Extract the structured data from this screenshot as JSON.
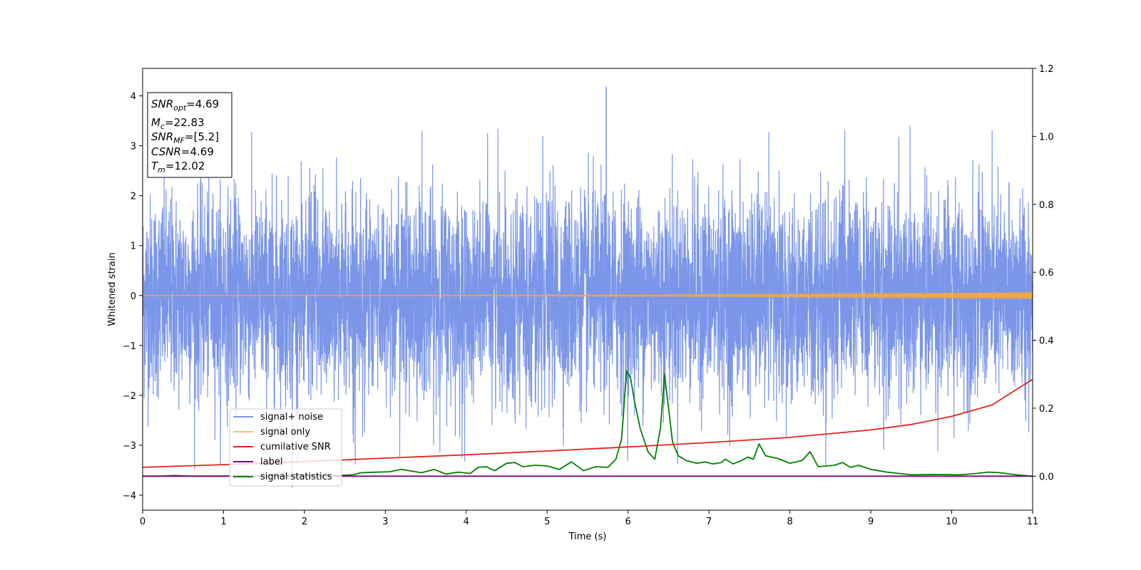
{
  "chart_data": {
    "type": "line",
    "xlabel": "Time (s)",
    "ylabel": "Whitened strain",
    "xlim": [
      0,
      11
    ],
    "ylim_left": [
      -4.3,
      4.55
    ],
    "ylim_right": [
      -0.1,
      1.2
    ],
    "x_ticks": [
      "0",
      "1",
      "2",
      "3",
      "4",
      "5",
      "6",
      "7",
      "8",
      "9",
      "10",
      "11"
    ],
    "y_ticks_left": [
      "−4",
      "−3",
      "−2",
      "−1",
      "0",
      "1",
      "2",
      "3",
      "4"
    ],
    "y_ticks_right": [
      "0.0",
      "0.2",
      "0.4",
      "0.6",
      "0.8",
      "1.0",
      "1.2"
    ],
    "grid": false,
    "legend_position": "lower-left",
    "info_box": {
      "lines": [
        {
          "sym": "SNR",
          "sub": "opt",
          "value": "=4.69"
        },
        {
          "sym": "M",
          "sub": "c",
          "value": "=22.83"
        },
        {
          "sym": "SNR",
          "sub": "MF",
          "value": "=[5.2]"
        },
        {
          "sym": "CSNR",
          "sub": "",
          "value": "=4.69"
        },
        {
          "sym": "T",
          "sub": "m",
          "value": "=12.02"
        }
      ]
    },
    "series": [
      {
        "name": "signal+ noise",
        "axis": "left",
        "color": "#7b96e8",
        "description_stats": {
          "mean": 0.0,
          "std": 1.0,
          "peak_max": 4.18,
          "peak_max_t": 5.73,
          "peak_min": -3.85,
          "peak_min_t": 1.85
        }
      },
      {
        "name": "signal only",
        "axis": "left",
        "color": "#f5a742",
        "chirp": {
          "amplitude_start": 0.005,
          "amplitude_end": 0.07
        }
      },
      {
        "name": "cumilative SNR",
        "axis": "right",
        "color": "#e8221c",
        "x": [
          0,
          1,
          2,
          3,
          4,
          5,
          6,
          7,
          8,
          9,
          9.5,
          10,
          10.5,
          11
        ],
        "y": [
          0.026,
          0.034,
          0.043,
          0.053,
          0.063,
          0.074,
          0.086,
          0.099,
          0.114,
          0.136,
          0.152,
          0.176,
          0.21,
          0.285
        ]
      },
      {
        "name": "label",
        "axis": "right",
        "color": "#800080",
        "x": [
          0,
          11
        ],
        "y": [
          0.0,
          0.0
        ]
      },
      {
        "name": "signal statistics",
        "axis": "right",
        "color": "#008000",
        "x": [
          0,
          0.2,
          0.4,
          0.6,
          0.8,
          1.0,
          1.2,
          1.4,
          1.6,
          1.8,
          2.0,
          2.2,
          2.4,
          2.6,
          2.7,
          2.9,
          3.05,
          3.2,
          3.3,
          3.45,
          3.6,
          3.75,
          3.9,
          4.05,
          4.15,
          4.25,
          4.35,
          4.5,
          4.6,
          4.7,
          4.85,
          5.0,
          5.15,
          5.3,
          5.45,
          5.6,
          5.75,
          5.85,
          5.92,
          5.98,
          6.03,
          6.08,
          6.15,
          6.25,
          6.33,
          6.4,
          6.45,
          6.5,
          6.55,
          6.62,
          6.72,
          6.85,
          6.95,
          7.05,
          7.15,
          7.2,
          7.3,
          7.4,
          7.48,
          7.55,
          7.62,
          7.7,
          7.85,
          8.0,
          8.15,
          8.25,
          8.35,
          8.55,
          8.65,
          8.75,
          8.85,
          9.0,
          9.2,
          9.5,
          9.8,
          10.1,
          10.3,
          10.45,
          10.6,
          10.8,
          11.0
        ],
        "y": [
          0.0,
          0.0,
          0.002,
          0.0,
          0.0,
          0.0,
          0.001,
          0.0,
          0.002,
          0.004,
          0.004,
          0.003,
          0.002,
          0.004,
          0.01,
          0.012,
          0.013,
          0.02,
          0.016,
          0.01,
          0.02,
          0.006,
          0.012,
          0.008,
          0.026,
          0.028,
          0.016,
          0.038,
          0.04,
          0.028,
          0.032,
          0.03,
          0.02,
          0.042,
          0.016,
          0.028,
          0.026,
          0.05,
          0.11,
          0.31,
          0.29,
          0.22,
          0.14,
          0.07,
          0.05,
          0.14,
          0.3,
          0.2,
          0.1,
          0.06,
          0.046,
          0.038,
          0.042,
          0.036,
          0.04,
          0.05,
          0.036,
          0.046,
          0.056,
          0.05,
          0.095,
          0.06,
          0.052,
          0.038,
          0.046,
          0.072,
          0.028,
          0.032,
          0.04,
          0.026,
          0.032,
          0.02,
          0.012,
          0.004,
          0.005,
          0.004,
          0.008,
          0.012,
          0.01,
          0.004,
          0.0
        ]
      }
    ]
  }
}
